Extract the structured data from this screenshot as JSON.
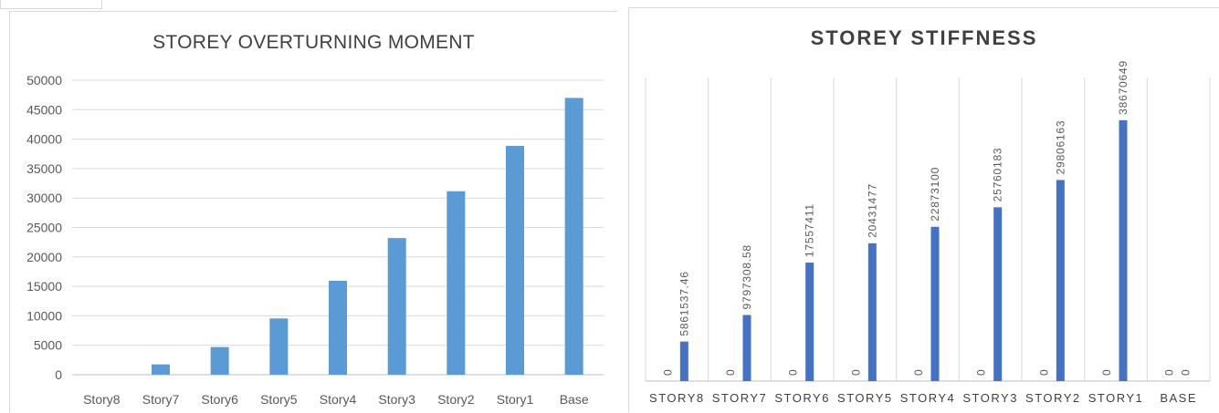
{
  "chart_data": [
    {
      "type": "bar",
      "title": "STOREY OVERTURNING MOMENT",
      "xlabel": "",
      "ylabel": "",
      "ylim": [
        0,
        50000
      ],
      "yticks": [
        0,
        5000,
        10000,
        15000,
        20000,
        25000,
        30000,
        35000,
        40000,
        45000,
        50000
      ],
      "grid": true,
      "categories": [
        "Story8",
        "Story7",
        "Story6",
        "Story5",
        "Story4",
        "Story3",
        "Story2",
        "Story1",
        "Base"
      ],
      "values": [
        0,
        1750,
        4700,
        9550,
        15950,
        23200,
        31150,
        38850,
        47000
      ],
      "color": "#5b9bd5"
    },
    {
      "type": "bar",
      "title": "STOREY STIFFNESS",
      "xlabel": "",
      "ylabel": "",
      "ylim": [
        0,
        45000000
      ],
      "grid": false,
      "categories": [
        "STORY8",
        "STORY7",
        "STORY6",
        "STORY5",
        "STORY4",
        "STORY3",
        "STORY2",
        "STORY1",
        "BASE"
      ],
      "series": [
        {
          "values": [
            0,
            0,
            0,
            0,
            0,
            0,
            0,
            0,
            0
          ],
          "labels": [
            "0",
            "0",
            "0",
            "0",
            "0",
            "0",
            "0",
            "0",
            "0"
          ]
        },
        {
          "values": [
            5861537.46,
            9797308.58,
            17557411,
            20431477,
            22873100,
            25760183,
            29806163,
            38670649,
            0
          ],
          "labels": [
            "5861537.46",
            "9797308.58",
            "17557411",
            "20431477",
            "22873100",
            "25760183",
            "29806163",
            "38670649",
            "0"
          ]
        }
      ],
      "color": "#4472c4"
    }
  ]
}
